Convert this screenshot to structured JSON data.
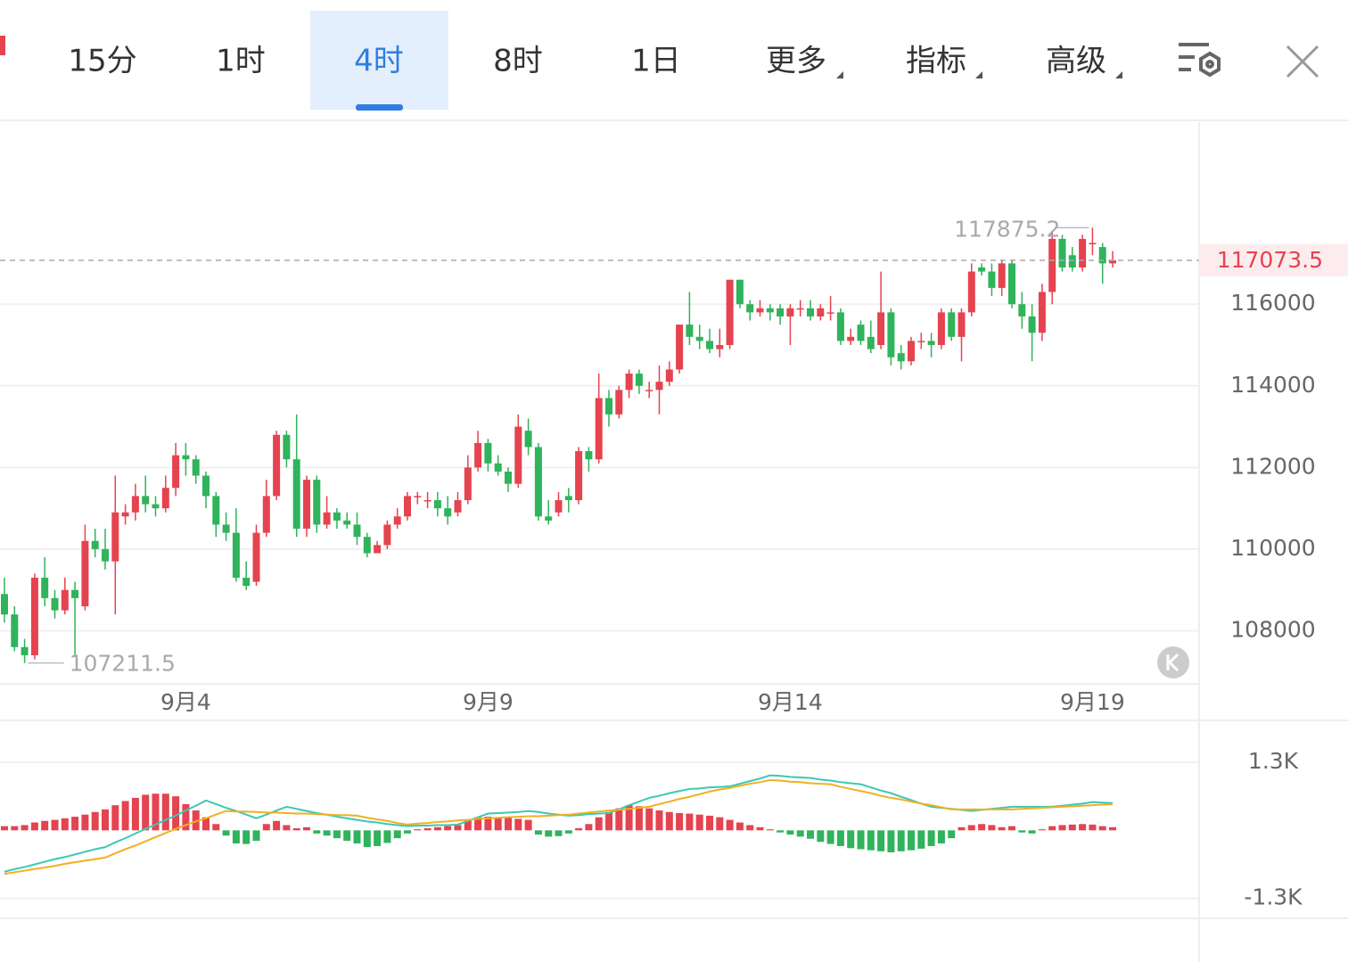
{
  "toolbar": {
    "tabs": [
      "15分",
      "1时",
      "4时",
      "8时",
      "1日",
      "更多",
      "指标",
      "高级"
    ],
    "active": 2
  },
  "chart_data": [
    {
      "type": "candlestick",
      "categories": [
        null,
        null,
        null,
        null,
        null,
        null,
        null,
        null,
        null,
        null,
        null,
        null,
        null,
        null,
        null,
        null,
        null,
        null,
        "9月4",
        null,
        null,
        null,
        null,
        null,
        null,
        null,
        null,
        null,
        null,
        null,
        null,
        null,
        null,
        null,
        null,
        null,
        null,
        null,
        null,
        null,
        null,
        null,
        null,
        null,
        null,
        null,
        null,
        null,
        "9月9",
        null,
        null,
        null,
        null,
        null,
        null,
        null,
        null,
        null,
        null,
        null,
        null,
        null,
        null,
        null,
        null,
        null,
        null,
        null,
        null,
        null,
        null,
        null,
        null,
        null,
        null,
        null,
        null,
        null,
        "9月14",
        null,
        null,
        null,
        null,
        null,
        null,
        null,
        null,
        null,
        null,
        null,
        null,
        null,
        null,
        null,
        null,
        null,
        null,
        null,
        null,
        null,
        null,
        null,
        null,
        null,
        null,
        null,
        null,
        null,
        "9月19",
        null,
        null
      ],
      "open": [
        108900,
        108400,
        107600,
        107400,
        109300,
        108800,
        108500,
        109000,
        108600,
        110200,
        110000,
        109700,
        110800,
        110900,
        111300,
        111100,
        111000,
        111500,
        112300,
        112200,
        111800,
        111300,
        110600,
        110400,
        109300,
        109200,
        110400,
        111300,
        112800,
        112200,
        110500,
        111700,
        110600,
        110900,
        110700,
        110600,
        110300,
        109900,
        110100,
        110600,
        110800,
        111300,
        111200,
        111200,
        111000,
        110900,
        111200,
        112000,
        112600,
        112100,
        111900,
        111600,
        112900,
        112500,
        110800,
        110900,
        111300,
        111200,
        112400,
        112200,
        113700,
        113300,
        113900,
        114300,
        113900,
        113900,
        114100,
        114400,
        115500,
        115200,
        115100,
        114900,
        115000,
        116600,
        116000,
        115800,
        115900,
        115900,
        115700,
        115900,
        115900,
        115700,
        115800,
        115800,
        115100,
        115500,
        115200,
        115000,
        115800,
        114800,
        114600,
        115100,
        115100,
        115000,
        115800,
        115200,
        115800,
        116900,
        116800,
        116400,
        117000,
        116000,
        115700,
        115300,
        116300,
        117600,
        117200,
        116900,
        117500,
        117400,
        117000
      ],
      "high": [
        109300,
        108600,
        107800,
        109400,
        109800,
        109000,
        109300,
        109200,
        110600,
        110500,
        110500,
        111800,
        111100,
        111600,
        111800,
        111300,
        111800,
        112600,
        112600,
        112300,
        111900,
        111400,
        110900,
        111000,
        109700,
        110600,
        111700,
        112900,
        112900,
        113300,
        111800,
        111800,
        111300,
        111000,
        110900,
        110900,
        110400,
        110200,
        110700,
        111000,
        111400,
        111400,
        111400,
        111400,
        111300,
        111400,
        112300,
        112900,
        112700,
        112300,
        112000,
        113300,
        113200,
        112600,
        111200,
        111400,
        111500,
        112500,
        112500,
        114300,
        113900,
        114000,
        114400,
        114400,
        114100,
        114500,
        114600,
        115500,
        116300,
        115500,
        115400,
        115400,
        116600,
        116600,
        116100,
        116100,
        116000,
        116000,
        116000,
        116100,
        116100,
        116000,
        116200,
        115900,
        115400,
        115600,
        115600,
        116800,
        115900,
        115000,
        115200,
        115300,
        115300,
        115900,
        115900,
        115900,
        117000,
        117000,
        117000,
        117100,
        117100,
        116300,
        116000,
        116500,
        117800,
        117700,
        117400,
        117700,
        117875.2,
        117500,
        117300
      ],
      "low": [
        108200,
        107500,
        107211.5,
        107300,
        108600,
        108300,
        108400,
        107400,
        108500,
        109800,
        109500,
        108400,
        110600,
        110700,
        110900,
        110800,
        110900,
        111300,
        111800,
        111600,
        111000,
        110300,
        110200,
        109200,
        109000,
        109100,
        110300,
        111200,
        112000,
        110300,
        110300,
        110400,
        110500,
        110500,
        110500,
        110100,
        109800,
        109900,
        110000,
        110500,
        110700,
        111100,
        111000,
        110800,
        110600,
        110800,
        111100,
        111900,
        111900,
        111800,
        111400,
        111500,
        112300,
        110700,
        110600,
        110800,
        110900,
        111100,
        111900,
        112100,
        113000,
        113200,
        113700,
        113800,
        113700,
        113300,
        114000,
        114300,
        115000,
        114900,
        114800,
        114700,
        114900,
        115900,
        115600,
        115700,
        115600,
        115500,
        115000,
        115700,
        115600,
        115600,
        115600,
        115000,
        115000,
        115000,
        114800,
        114900,
        114500,
        114400,
        114500,
        114900,
        114700,
        114900,
        115100,
        114600,
        115700,
        116700,
        116200,
        116200,
        115900,
        115400,
        114600,
        115100,
        116000,
        116800,
        116800,
        116800,
        117200,
        116500,
        116900
      ],
      "close": [
        108400,
        107600,
        107400,
        109300,
        108800,
        108500,
        109000,
        108800,
        110200,
        110000,
        109700,
        110900,
        110900,
        111300,
        111100,
        111000,
        111500,
        112300,
        112200,
        111800,
        111300,
        110600,
        110400,
        109300,
        109100,
        110400,
        111300,
        112800,
        112200,
        110500,
        111700,
        110600,
        110900,
        110700,
        110600,
        110300,
        109900,
        110100,
        110600,
        110800,
        111300,
        111300,
        111200,
        111000,
        110800,
        111200,
        112000,
        112600,
        112100,
        111900,
        111600,
        113000,
        112500,
        110800,
        110700,
        111200,
        111200,
        112400,
        112200,
        113700,
        113300,
        113900,
        114300,
        114000,
        113900,
        114100,
        114400,
        115500,
        115200,
        115100,
        114900,
        115000,
        116600,
        116000,
        115800,
        115900,
        115800,
        115700,
        115900,
        115900,
        115700,
        115900,
        115800,
        115100,
        115200,
        115100,
        114900,
        115800,
        114700,
        114600,
        115100,
        115100,
        115000,
        115800,
        115200,
        115800,
        116800,
        116800,
        116400,
        117000,
        116000,
        115700,
        115300,
        116300,
        117600,
        116900,
        116900,
        117600,
        117500,
        117000,
        117073.5
      ],
      "up_color": "#e5434f",
      "down_color": "#2fb35b",
      "ylim": [
        106700,
        120460
      ],
      "yticks": [
        108000,
        110000,
        112000,
        114000,
        116000
      ],
      "grid": true
    },
    {
      "type": "macd",
      "series": [
        {
          "color": "#3cc8b4",
          "values": [
            -790,
            -740,
            -700,
            -650,
            -600,
            -550,
            -510,
            -460,
            -410,
            -360,
            -320,
            -230,
            -150,
            -60,
            30,
            110,
            200,
            280,
            380,
            470,
            570,
            500,
            430,
            370,
            300,
            230,
            300,
            380,
            450,
            410,
            370,
            330,
            300,
            260,
            230,
            200,
            170,
            150,
            120,
            100,
            80,
            90,
            90,
            100,
            100,
            110,
            180,
            250,
            320,
            330,
            340,
            350,
            370,
            350,
            320,
            300,
            280,
            290,
            310,
            320,
            330,
            400,
            480,
            550,
            620,
            660,
            710,
            750,
            790,
            800,
            820,
            830,
            840,
            890,
            940,
            990,
            1050,
            1040,
            1020,
            1010,
            1000,
            970,
            950,
            920,
            900,
            880,
            820,
            760,
            710,
            640,
            580,
            510,
            450,
            430,
            410,
            390,
            370,
            390,
            410,
            430,
            450,
            450,
            450,
            450,
            450,
            470,
            490,
            510,
            540,
            530,
            520
          ]
        },
        {
          "color": "#f0b020",
          "values": [
            -830,
            -800,
            -770,
            -740,
            -710,
            -680,
            -640,
            -610,
            -580,
            -550,
            -520,
            -440,
            -360,
            -290,
            -210,
            -130,
            -50,
            30,
            100,
            170,
            230,
            300,
            370,
            360,
            360,
            350,
            340,
            340,
            330,
            320,
            320,
            310,
            300,
            290,
            290,
            280,
            240,
            210,
            180,
            140,
            110,
            130,
            140,
            160,
            170,
            190,
            200,
            220,
            230,
            240,
            250,
            260,
            270,
            270,
            280,
            290,
            300,
            320,
            340,
            360,
            380,
            390,
            410,
            430,
            450,
            500,
            550,
            600,
            640,
            690,
            740,
            780,
            810,
            850,
            890,
            920,
            960,
            950,
            930,
            920,
            900,
            890,
            880,
            830,
            790,
            750,
            710,
            660,
            620,
            590,
            550,
            510,
            480,
            440,
            400,
            400,
            400,
            400,
            400,
            400,
            400,
            410,
            420,
            430,
            440,
            450,
            460,
            470,
            480,
            490,
            500
          ]
        }
      ],
      "histogram": {
        "up_color": "#e5434f",
        "down_color": "#2fb35b",
        "values": [
          80,
          80,
          100,
          150,
          180,
          200,
          230,
          260,
          300,
          350,
          400,
          480,
          560,
          620,
          680,
          700,
          700,
          650,
          500,
          380,
          250,
          120,
          -100,
          -250,
          -260,
          -200,
          120,
          180,
          100,
          40,
          60,
          -60,
          -100,
          -150,
          -200,
          -250,
          -320,
          -300,
          -240,
          -150,
          -60,
          20,
          40,
          60,
          80,
          100,
          200,
          250,
          260,
          250,
          240,
          220,
          200,
          -80,
          -120,
          -110,
          -60,
          40,
          120,
          250,
          350,
          420,
          480,
          460,
          420,
          380,
          350,
          330,
          320,
          300,
          280,
          250,
          200,
          150,
          100,
          60,
          20,
          -40,
          -80,
          -120,
          -160,
          -220,
          -260,
          -300,
          -340,
          -360,
          -380,
          -400,
          -420,
          -400,
          -380,
          -350,
          -300,
          -250,
          -150,
          60,
          100,
          120,
          100,
          60,
          80,
          -40,
          -60,
          20,
          80,
          100,
          110,
          120,
          110,
          80,
          60
        ]
      },
      "ylim": [
        -1680,
        2100
      ],
      "yticks": [
        {
          "value": 1300,
          "label": "1.3K"
        },
        {
          "value": -1300,
          "label": "-1.3K"
        }
      ],
      "grid": true
    }
  ]
}
